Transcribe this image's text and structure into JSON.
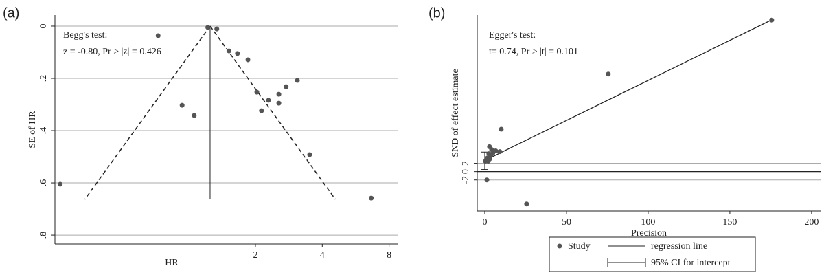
{
  "chart_data": [
    {
      "type": "funnel",
      "panel_label": "(a)",
      "x_label": "HR",
      "y_label": "SE of HR",
      "annotations": [
        "Begg's test:",
        "z = -0.80,  Pr > |z| = 0.426"
      ],
      "xscale": "log",
      "xlim": [
        0.25,
        8.8
      ],
      "xticks": [
        2,
        4,
        8
      ],
      "ylim": [
        -0.042,
        0.834
      ],
      "y_reversed": true,
      "yticks": [
        0,
        {
          "value": 0.2,
          "label": ".2"
        },
        {
          "value": 0.4,
          "label": ".4"
        },
        {
          "value": 0.6,
          "label": ".6"
        },
        {
          "value": 0.8,
          "label": ".8"
        }
      ],
      "grid": true,
      "color": "#555555",
      "pseudo_ci": {
        "center": 1.25,
        "se_max": 0.663
      },
      "x": [
        0.264,
        0.729,
        1.22,
        1.34,
        1.52,
        1.66,
        1.85,
        2.03,
        2.13,
        2.29,
        2.55,
        2.55,
        2.75,
        3.09,
        0.935,
        1.06,
        3.51,
        6.65
      ],
      "values": [
        0.605,
        0.037,
        0.005,
        0.011,
        0.095,
        0.105,
        0.129,
        0.253,
        0.324,
        0.284,
        0.261,
        0.295,
        0.232,
        0.208,
        0.303,
        0.342,
        0.492,
        0.658
      ]
    },
    {
      "type": "egger",
      "panel_label": "(b)",
      "x_label": "Precision",
      "y_label": "SND of effect estimate",
      "annotations": [
        "Egger's test:",
        "t= 0.74, Pr > |t| = 0.101"
      ],
      "xlim": [
        -4.6,
        205.5
      ],
      "xticks": [
        0,
        50,
        100,
        150,
        200
      ],
      "ylim": [
        -9.5,
        37.7
      ],
      "yticks": [
        -2,
        0,
        2
      ],
      "grid": true,
      "zero_line": true,
      "color": "#555555",
      "series": [
        {
          "name": "Study",
          "color": "#555555",
          "x": [
            175.6,
            75.6,
            25.6,
            10.1,
            2.9,
            4.2,
            6.7,
            9.2,
            2.5,
            1.7,
            0.8,
            2.9,
            1.3,
            3.4,
            2.1,
            3.8,
            5.0,
            0.4
          ],
          "values": [
            36.5,
            23.5,
            -7.8,
            10.2,
            6.0,
            5.3,
            5.0,
            4.8,
            4.3,
            3.3,
            2.8,
            3.0,
            -2.0,
            3.7,
            2.5,
            4.0,
            4.5,
            2.5
          ]
        }
      ],
      "regression": {
        "name": "regression line",
        "intercept": 2.67,
        "slope": 0.193
      },
      "intercept_ci": {
        "name": "95% CI for intercept",
        "values": [
          0.5,
          4.7
        ]
      }
    }
  ]
}
